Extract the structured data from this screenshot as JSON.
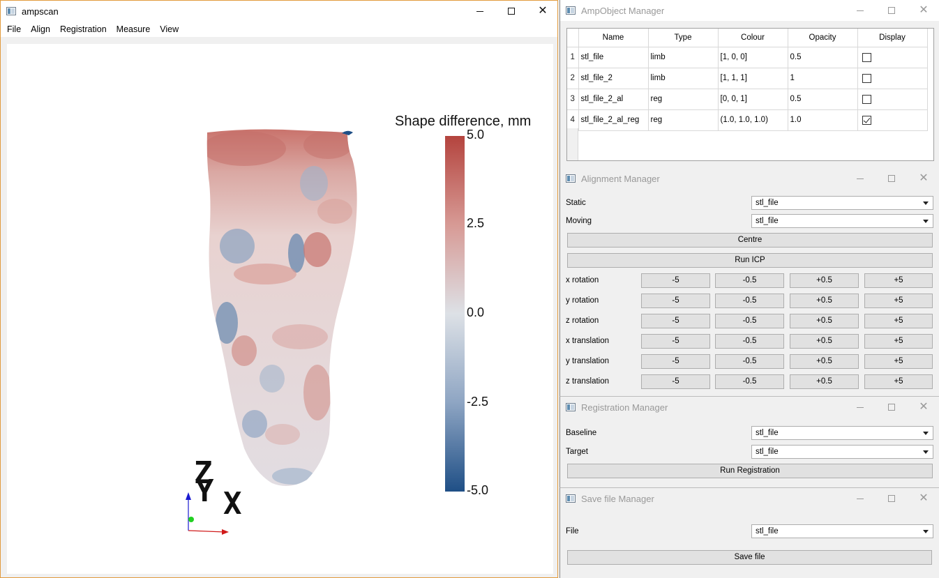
{
  "main_window": {
    "title": "ampscan",
    "menu": [
      "File",
      "Align",
      "Registration",
      "Measure",
      "View"
    ]
  },
  "viewport": {
    "colorbar": {
      "title": "Shape difference, mm",
      "ticks": [
        "5.0",
        "2.5",
        "0.0",
        "-2.5",
        "-5.0"
      ],
      "colors": {
        "high": "#b4443e",
        "mid": "#dde1e6",
        "low": "#1f4f86"
      }
    },
    "axes": {
      "x_label": "X",
      "y_label": "Y",
      "z_label": "Z"
    }
  },
  "ampobject_manager": {
    "title": "AmpObject Manager",
    "columns": [
      "Name",
      "Type",
      "Colour",
      "Opacity",
      "Display"
    ],
    "rows": [
      {
        "num": "1",
        "name": "stl_file",
        "type": "limb",
        "colour": "[1, 0, 0]",
        "opacity": "0.5",
        "display": false
      },
      {
        "num": "2",
        "name": "stl_file_2",
        "type": "limb",
        "colour": "[1, 1, 1]",
        "opacity": "1",
        "display": false
      },
      {
        "num": "3",
        "name": "stl_file_2_al",
        "type": "reg",
        "colour": "[0, 0, 1]",
        "opacity": "0.5",
        "display": false
      },
      {
        "num": "4",
        "name": "stl_file_2_al_reg",
        "type": "reg",
        "colour": "(1.0, 1.0, 1.0)",
        "opacity": "1.0",
        "display": true
      }
    ]
  },
  "alignment_manager": {
    "title": "Alignment Manager",
    "static_label": "Static",
    "static_value": "stl_file",
    "moving_label": "Moving",
    "moving_value": "stl_file",
    "centre_label": "Centre",
    "run_icp_label": "Run ICP",
    "steps": [
      "-5",
      "-0.5",
      "+0.5",
      "+5"
    ],
    "rows": [
      "x rotation",
      "y rotation",
      "z rotation",
      "x translation",
      "y translation",
      "z translation"
    ]
  },
  "registration_manager": {
    "title": "Registration Manager",
    "baseline_label": "Baseline",
    "baseline_value": "stl_file",
    "target_label": "Target",
    "target_value": "stl_file",
    "run_label": "Run Registration"
  },
  "save_manager": {
    "title": "Save file Manager",
    "file_label": "File",
    "file_value": "stl_file",
    "save_label": "Save file"
  }
}
